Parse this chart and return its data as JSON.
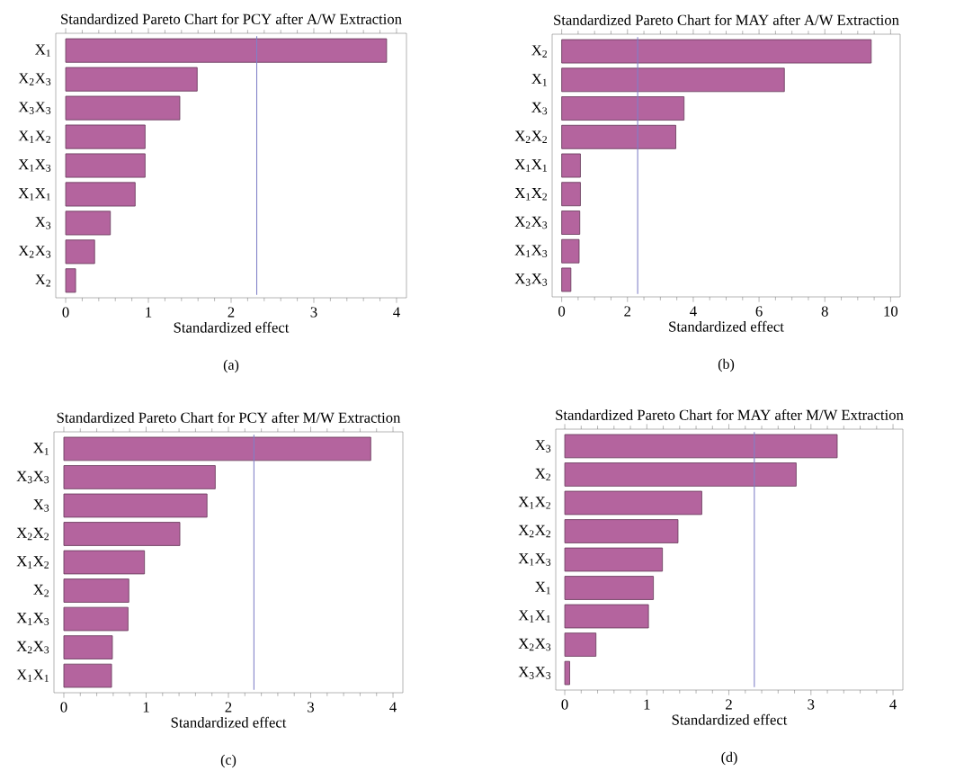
{
  "chart_data": [
    {
      "type": "bar",
      "orientation": "horizontal",
      "title": "Standardized Pareto Chart for PCY after A/W Extraction",
      "xlabel": "Standardized effect",
      "categories": [
        "X$_{1}$",
        "X$_{2}$X$_{3}$",
        "X$_{3}$X$_{3}$",
        "X$_{1}$X$_{2}$",
        "X$_{1}$X$_{3}$",
        "X$_{1}$X$_{1}$",
        "X$_{3}$",
        "X$_{2}$X$_{3}$",
        "X$_{2}$"
      ],
      "values": [
        3.88,
        1.59,
        1.38,
        0.96,
        0.96,
        0.84,
        0.54,
        0.35,
        0.12
      ],
      "color": "#b4649e",
      "xlim": [
        -0.12,
        4.12
      ],
      "xticks": [
        0,
        1,
        2,
        3,
        4
      ],
      "ref_lines": [
        {
          "axis": "x",
          "value": 2.31,
          "color": "#8080c8"
        }
      ],
      "annotations": [
        "(a)"
      ]
    },
    {
      "type": "bar",
      "orientation": "horizontal",
      "title": "Standardized Pareto Chart for MAY after A/W Extraction",
      "xlabel": "Standardized effect",
      "categories": [
        "X$_{2}$",
        "X$_{1}$",
        "X$_{3}$",
        "X$_{2}$X$_{2}$",
        "X$_{1}$X$_{1}$",
        "X$_{1}$X$_{2}$",
        "X$_{2}$X$_{3}$",
        "X$_{1}$X$_{3}$",
        "X$_{3}$X$_{3}$"
      ],
      "values": [
        9.41,
        6.77,
        3.72,
        3.47,
        0.57,
        0.57,
        0.55,
        0.53,
        0.28
      ],
      "color": "#b4649e",
      "xlim": [
        -0.29,
        10.29
      ],
      "xticks": [
        0,
        2,
        4,
        6,
        8,
        10
      ],
      "ref_lines": [
        {
          "axis": "x",
          "value": 2.31,
          "color": "#8080c8"
        }
      ],
      "annotations": [
        "(b)"
      ]
    },
    {
      "type": "bar",
      "orientation": "horizontal",
      "title": "Standardized Pareto Chart for PCY after M/W Extraction",
      "xlabel": "Standardized effect",
      "categories": [
        "X$_{1}$",
        "X$_{3}$X$_{3}$",
        "X$_{3}$",
        "X$_{2}$X$_{2}$",
        "X$_{1}$X$_{2}$",
        "X$_{2}$",
        "X$_{1}$X$_{3}$",
        "X$_{2}$X$_{3}$",
        "X$_{1}$X$_{1}$"
      ],
      "values": [
        3.73,
        1.84,
        1.74,
        1.41,
        0.98,
        0.79,
        0.78,
        0.59,
        0.58
      ],
      "color": "#b4649e",
      "xlim": [
        -0.12,
        4.12
      ],
      "xticks": [
        0,
        1,
        2,
        3,
        4
      ],
      "ref_lines": [
        {
          "axis": "x",
          "value": 2.31,
          "color": "#8080c8"
        }
      ],
      "annotations": [
        "(c)"
      ]
    },
    {
      "type": "bar",
      "orientation": "horizontal",
      "title": "Standardized Pareto Chart for MAY after M/W Extraction",
      "xlabel": "Standardized effect",
      "categories": [
        "X$_{3}$",
        "X$_{2}$",
        "X$_{1}$X$_{2}$",
        "X$_{2}$X$_{2}$",
        "X$_{1}$X$_{3}$",
        "X$_{1}$",
        "X$_{1}$X$_{1}$",
        "X$_{2}$X$_{3}$",
        "X$_{3}$X$_{3}$"
      ],
      "values": [
        3.32,
        2.82,
        1.67,
        1.38,
        1.19,
        1.08,
        1.02,
        0.38,
        0.06
      ],
      "color": "#b4649e",
      "xlim": [
        -0.11,
        4.12
      ],
      "xticks": [
        0,
        1,
        2,
        3,
        4
      ],
      "ref_lines": [
        {
          "axis": "x",
          "value": 2.31,
          "color": "#8080c8"
        }
      ],
      "annotations": [
        "(d)"
      ]
    }
  ]
}
